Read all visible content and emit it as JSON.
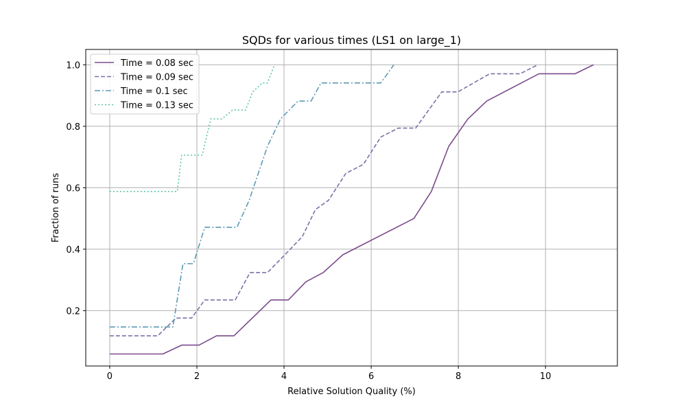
{
  "chart_data": {
    "type": "line",
    "title": "SQDs for various times (LS1 on large_1)",
    "xlabel": "Relative Solution Quality (%)",
    "ylabel": "Fraction of runs",
    "xlim": [
      -0.55,
      11.65
    ],
    "ylim": [
      0.02,
      1.05
    ],
    "xticks": [
      0,
      2,
      4,
      6,
      8,
      10
    ],
    "yticks": [
      0.2,
      0.4,
      0.6,
      0.8,
      1.0
    ],
    "xtick_labels": [
      "0",
      "2",
      "4",
      "6",
      "8",
      "10"
    ],
    "ytick_labels": [
      "0.2",
      "0.4",
      "0.6",
      "0.8",
      "1.0"
    ],
    "grid": true,
    "legend_position": "top-left",
    "series": [
      {
        "name": "Time = 0.08 sec",
        "color": "#7b4a8c",
        "dash": "solid",
        "x": [
          0,
          1.22,
          1.65,
          2.05,
          2.45,
          2.85,
          3.7,
          4.1,
          4.5,
          4.9,
          5.35,
          6.98,
          7.38,
          7.78,
          8.22,
          8.65,
          9.85,
          10.68,
          11.1
        ],
        "y": [
          0.059,
          0.059,
          0.088,
          0.088,
          0.118,
          0.118,
          0.235,
          0.235,
          0.294,
          0.324,
          0.382,
          0.5,
          0.588,
          0.735,
          0.824,
          0.882,
          0.971,
          0.971,
          1.0
        ]
      },
      {
        "name": "Time = 0.09 sec",
        "color": "#7a70a8",
        "dash": "dashed",
        "x": [
          0,
          1.1,
          1.52,
          1.62,
          1.88,
          2.18,
          2.88,
          3.22,
          3.62,
          4.02,
          4.42,
          4.72,
          5.02,
          5.42,
          5.82,
          6.22,
          6.62,
          7.02,
          7.62,
          7.99,
          8.72,
          9.42,
          9.82
        ],
        "y": [
          0.118,
          0.118,
          0.176,
          0.176,
          0.176,
          0.235,
          0.235,
          0.324,
          0.324,
          0.382,
          0.441,
          0.529,
          0.559,
          0.647,
          0.676,
          0.765,
          0.794,
          0.794,
          0.912,
          0.912,
          0.971,
          0.971,
          1.0
        ]
      },
      {
        "name": "Time = 0.1 sec",
        "color": "#5c9ab4",
        "dash": "dashdot",
        "x": [
          0,
          1.45,
          1.68,
          1.92,
          2.18,
          2.52,
          2.92,
          3.2,
          3.62,
          3.92,
          4.32,
          4.62,
          4.85,
          5.42,
          6.22,
          6.52
        ],
        "y": [
          0.147,
          0.147,
          0.353,
          0.353,
          0.471,
          0.471,
          0.471,
          0.559,
          0.735,
          0.824,
          0.882,
          0.882,
          0.941,
          0.941,
          0.941,
          1.0
        ]
      },
      {
        "name": "Time = 0.13 sec",
        "color": "#55c4ad",
        "dash": "dotted",
        "x": [
          0,
          1.55,
          1.65,
          2.12,
          2.32,
          2.58,
          2.82,
          3.02,
          3.12,
          3.28,
          3.5,
          3.62,
          3.78
        ],
        "y": [
          0.588,
          0.588,
          0.706,
          0.706,
          0.824,
          0.824,
          0.853,
          0.853,
          0.853,
          0.912,
          0.941,
          0.941,
          1.0
        ]
      }
    ]
  }
}
